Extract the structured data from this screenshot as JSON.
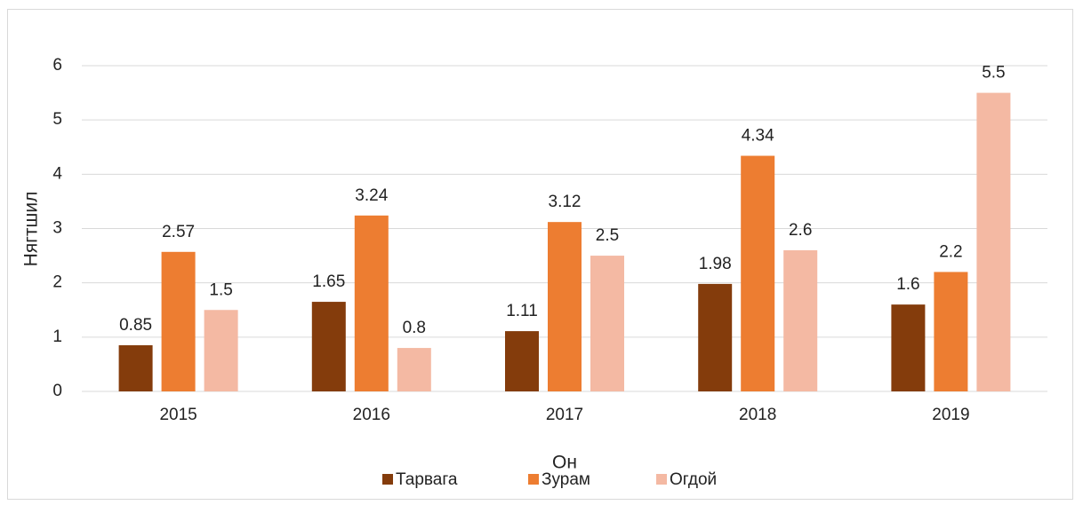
{
  "chart_data": {
    "type": "bar",
    "categories": [
      "2015",
      "2016",
      "2017",
      "2018",
      "2019"
    ],
    "series": [
      {
        "name": "Тарвага",
        "color": "#843c0c",
        "values": [
          0.85,
          1.65,
          1.11,
          1.98,
          1.6
        ]
      },
      {
        "name": "Зурам",
        "color": "#ed7d31",
        "values": [
          2.57,
          3.24,
          3.12,
          4.34,
          2.2
        ]
      },
      {
        "name": "Огдой",
        "color": "#f4b9a3",
        "values": [
          1.5,
          0.8,
          2.5,
          2.6,
          5.5
        ]
      }
    ],
    "xlabel": "Он",
    "ylabel": "Нягтшил",
    "ylim": [
      0,
      6
    ],
    "yticks": [
      0,
      1,
      2,
      3,
      4,
      5,
      6
    ],
    "grid": true,
    "legend": "bottom"
  }
}
